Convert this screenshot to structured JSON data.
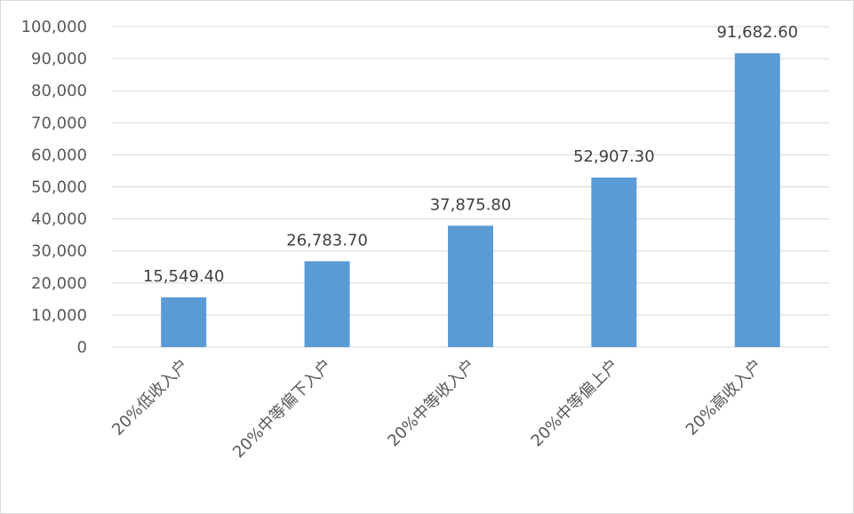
{
  "chart_data": {
    "type": "bar",
    "categories": [
      "20%低收入户",
      "20%中等偏下入户",
      "20%中等收入户",
      "20%中等偏上户",
      "20%高收入户"
    ],
    "values": [
      15549.4,
      26783.7,
      37875.8,
      52907.3,
      91682.6
    ],
    "data_labels": [
      "15,549.40",
      "26,783.70",
      "37,875.80",
      "52,907.30",
      "91,682.60"
    ],
    "y_ticks": [
      "0",
      "10,000",
      "20,000",
      "30,000",
      "40,000",
      "50,000",
      "60,000",
      "70,000",
      "80,000",
      "90,000",
      "100,000"
    ],
    "ylim": [
      0,
      100000
    ],
    "title": "",
    "xlabel": "",
    "ylabel": "",
    "grid": true,
    "legend": "none",
    "colors": {
      "bar": "#5b9bd5",
      "grid": "#d9d9d9",
      "tick_text": "#595959",
      "label_text": "#404040"
    }
  }
}
